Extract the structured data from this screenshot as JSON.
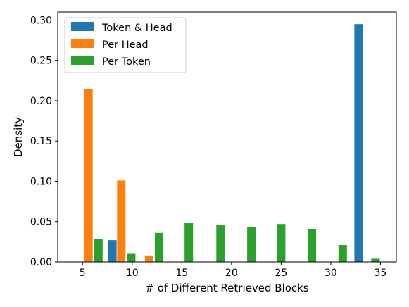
{
  "chart_data": {
    "type": "bar",
    "xlabel": "# of Different Retrieved Blocks",
    "ylabel": "Density",
    "xlim": [
      2.5,
      36.6
    ],
    "ylim": [
      0,
      0.31
    ],
    "x_ticks": [
      5,
      10,
      15,
      20,
      25,
      30,
      35
    ],
    "y_ticks": [
      0.0,
      0.05,
      0.1,
      0.15,
      0.2,
      0.25,
      0.3
    ],
    "grid": false,
    "legend_position": "top-left",
    "series": [
      {
        "name": "Token & Head",
        "color": "#1f77b4",
        "bars": [
          {
            "x": 8.0,
            "value": 0.027
          },
          {
            "x": 32.8,
            "value": 0.295
          }
        ]
      },
      {
        "name": "Per Head",
        "color": "#ff7f0e",
        "bars": [
          {
            "x": 5.6,
            "value": 0.214
          },
          {
            "x": 8.9,
            "value": 0.101
          },
          {
            "x": 11.7,
            "value": 0.008
          }
        ]
      },
      {
        "name": "Per Token",
        "color": "#2ca02c",
        "bars": [
          {
            "x": 6.6,
            "value": 0.028
          },
          {
            "x": 9.9,
            "value": 0.01
          },
          {
            "x": 12.7,
            "value": 0.036
          },
          {
            "x": 15.7,
            "value": 0.048
          },
          {
            "x": 18.9,
            "value": 0.046
          },
          {
            "x": 22.0,
            "value": 0.043
          },
          {
            "x": 25.0,
            "value": 0.047
          },
          {
            "x": 28.1,
            "value": 0.041
          },
          {
            "x": 31.2,
            "value": 0.021
          },
          {
            "x": 34.5,
            "value": 0.004
          }
        ]
      }
    ]
  }
}
